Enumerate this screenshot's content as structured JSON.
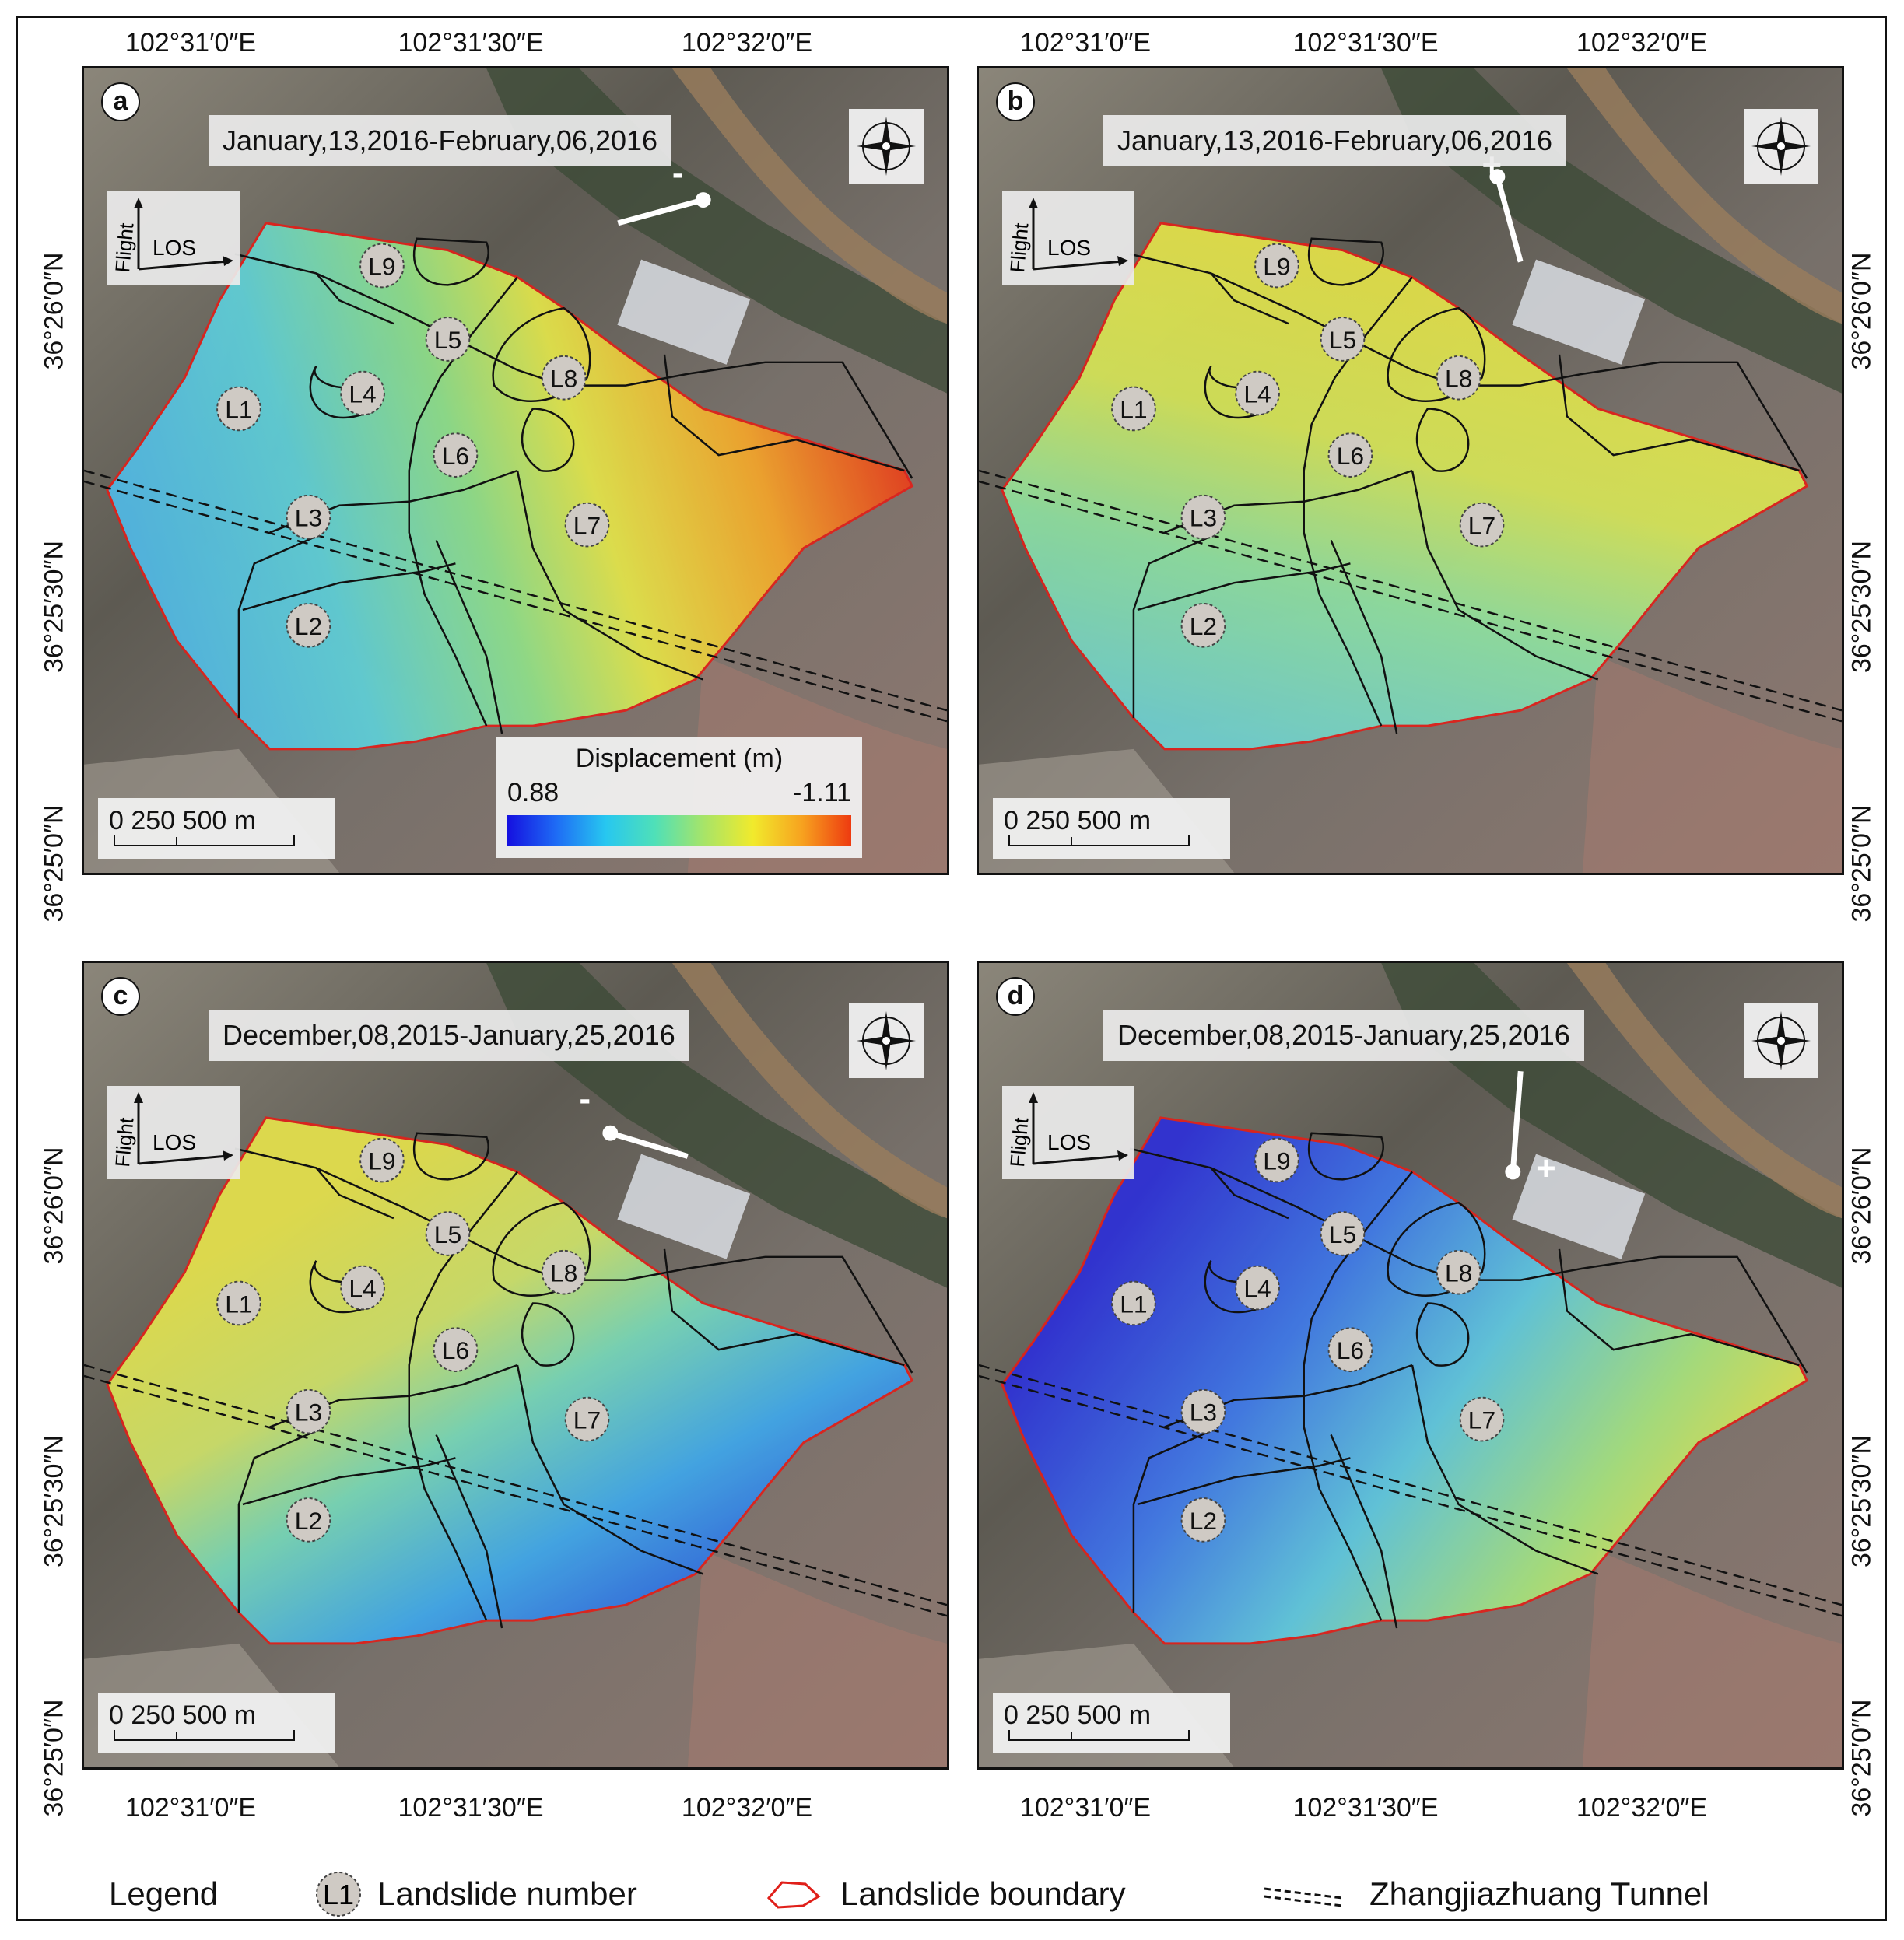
{
  "figure": {
    "panels": [
      {
        "letter": "a",
        "date_range": "January,13,2016-February,06,2016",
        "flight_label": "Flight",
        "los_label": "LOS",
        "arrow_sign": "-",
        "variant": "a"
      },
      {
        "letter": "b",
        "date_range": "January,13,2016-February,06,2016",
        "flight_label": "Flight",
        "los_label": "LOS",
        "arrow_sign": "+",
        "variant": "b"
      },
      {
        "letter": "c",
        "date_range": "December,08,2015-January,25,2016",
        "flight_label": "Flight",
        "los_label": "LOS",
        "arrow_sign": "-",
        "variant": "c"
      },
      {
        "letter": "d",
        "date_range": "December,08,2015-January,25,2016",
        "flight_label": "Flight",
        "los_label": "LOS",
        "arrow_sign": "+",
        "variant": "d"
      }
    ],
    "landslides": [
      "L1",
      "L2",
      "L3",
      "L4",
      "L5",
      "L6",
      "L7",
      "L8",
      "L9"
    ],
    "scale_bar": {
      "label": "0 250 500 m"
    },
    "displacement_legend": {
      "title": "Displacement (m)",
      "min": "0.88",
      "max": "-1.11"
    },
    "coords": {
      "lon_top_left": [
        "102°31′0″E",
        "102°31′30″E",
        "102°32′0″E"
      ],
      "lon_top_right": [
        "102°31′0″E",
        "102°31′30″E",
        "102°32′0″E"
      ],
      "lon_bottom_left": [
        "102°31′0″E",
        "102°31′30″E",
        "102°32′0″E"
      ],
      "lon_bottom_right": [
        "102°31′0″E",
        "102°31′30″E",
        "102°32′0″E"
      ],
      "lat_left": [
        "36°26′0″N",
        "36°25′30″N",
        "36°25′0″N"
      ],
      "lat_right": [
        "36°26′0″N",
        "36°25′30″N",
        "36°25′0″N"
      ]
    },
    "legend": {
      "title": "Legend",
      "landslide_number": "Landslide number",
      "landslide_symbol": "L1",
      "landslide_boundary": "Landslide boundary",
      "tunnel": "Zhangjiazhuang Tunnel"
    },
    "colors": {
      "boundary": "#e0201a",
      "ramp_low": "#1510e0",
      "ramp_high": "#ee3a10"
    }
  }
}
